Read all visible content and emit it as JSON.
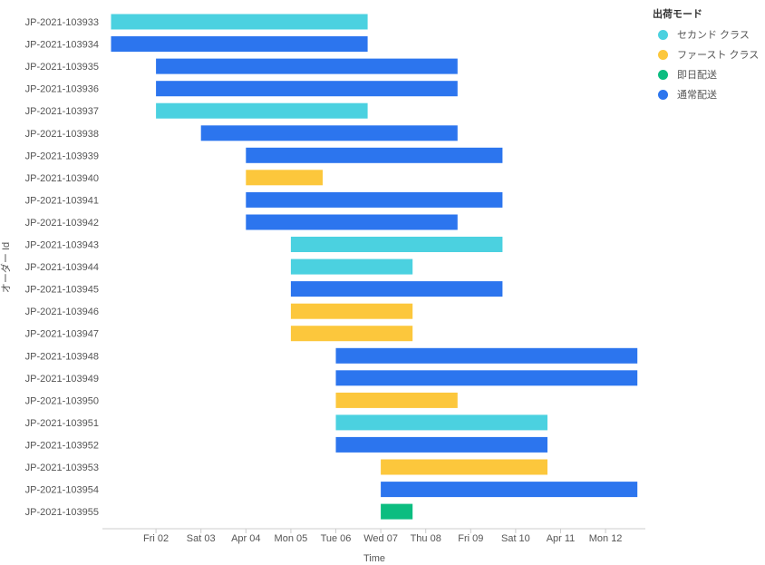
{
  "chart_data": {
    "type": "gantt",
    "xlabel": "Time",
    "ylabel": "オーダー Id",
    "x_ticks": [
      {
        "label": "Fri 02",
        "value": "2021-04-02"
      },
      {
        "label": "Sat 03",
        "value": "2021-04-03"
      },
      {
        "label": "Apr 04",
        "value": "2021-04-04"
      },
      {
        "label": "Mon 05",
        "value": "2021-04-05"
      },
      {
        "label": "Tue 06",
        "value": "2021-04-06"
      },
      {
        "label": "Wed 07",
        "value": "2021-04-07"
      },
      {
        "label": "Thu 08",
        "value": "2021-04-08"
      },
      {
        "label": "Fri 09",
        "value": "2021-04-09"
      },
      {
        "label": "Sat 10",
        "value": "2021-04-10"
      },
      {
        "label": "Apr 11",
        "value": "2021-04-11"
      },
      {
        "label": "Mon 12",
        "value": "2021-04-12"
      }
    ],
    "xlim": [
      "2021-04-01",
      "2021-04-13"
    ],
    "legend": {
      "title": "出荷モード",
      "position": "top-right",
      "items": [
        {
          "name": "セカンド クラス",
          "color": "#4bd1e0"
        },
        {
          "name": "ファースト クラス",
          "color": "#fcc73c"
        },
        {
          "name": "即日配送",
          "color": "#0cbd80"
        },
        {
          "name": "通常配送",
          "color": "#2c75ee"
        }
      ]
    },
    "tasks": [
      {
        "id": "JP-2021-103933",
        "start": "2021-04-01",
        "end": "2021-04-06 17:00",
        "mode": "セカンド クラス"
      },
      {
        "id": "JP-2021-103934",
        "start": "2021-04-01",
        "end": "2021-04-06 17:00",
        "mode": "通常配送"
      },
      {
        "id": "JP-2021-103935",
        "start": "2021-04-02",
        "end": "2021-04-08 17:00",
        "mode": "通常配送"
      },
      {
        "id": "JP-2021-103936",
        "start": "2021-04-02",
        "end": "2021-04-08 17:00",
        "mode": "通常配送"
      },
      {
        "id": "JP-2021-103937",
        "start": "2021-04-02",
        "end": "2021-04-06 17:00",
        "mode": "セカンド クラス"
      },
      {
        "id": "JP-2021-103938",
        "start": "2021-04-03",
        "end": "2021-04-08 17:00",
        "mode": "通常配送"
      },
      {
        "id": "JP-2021-103939",
        "start": "2021-04-04",
        "end": "2021-04-09 17:00",
        "mode": "通常配送"
      },
      {
        "id": "JP-2021-103940",
        "start": "2021-04-04",
        "end": "2021-04-05 17:00",
        "mode": "ファースト クラス"
      },
      {
        "id": "JP-2021-103941",
        "start": "2021-04-04",
        "end": "2021-04-09 17:00",
        "mode": "通常配送"
      },
      {
        "id": "JP-2021-103942",
        "start": "2021-04-04",
        "end": "2021-04-08 17:00",
        "mode": "通常配送"
      },
      {
        "id": "JP-2021-103943",
        "start": "2021-04-05",
        "end": "2021-04-09 17:00",
        "mode": "セカンド クラス"
      },
      {
        "id": "JP-2021-103944",
        "start": "2021-04-05",
        "end": "2021-04-07 17:00",
        "mode": "セカンド クラス"
      },
      {
        "id": "JP-2021-103945",
        "start": "2021-04-05",
        "end": "2021-04-09 17:00",
        "mode": "通常配送"
      },
      {
        "id": "JP-2021-103946",
        "start": "2021-04-05",
        "end": "2021-04-07 17:00",
        "mode": "ファースト クラス"
      },
      {
        "id": "JP-2021-103947",
        "start": "2021-04-05",
        "end": "2021-04-07 17:00",
        "mode": "ファースト クラス"
      },
      {
        "id": "JP-2021-103948",
        "start": "2021-04-06",
        "end": "2021-04-12 17:00",
        "mode": "通常配送"
      },
      {
        "id": "JP-2021-103949",
        "start": "2021-04-06",
        "end": "2021-04-12 17:00",
        "mode": "通常配送"
      },
      {
        "id": "JP-2021-103950",
        "start": "2021-04-06",
        "end": "2021-04-08 17:00",
        "mode": "ファースト クラス"
      },
      {
        "id": "JP-2021-103951",
        "start": "2021-04-06",
        "end": "2021-04-10 17:00",
        "mode": "セカンド クラス"
      },
      {
        "id": "JP-2021-103952",
        "start": "2021-04-06",
        "end": "2021-04-10 17:00",
        "mode": "通常配送"
      },
      {
        "id": "JP-2021-103953",
        "start": "2021-04-07",
        "end": "2021-04-10 17:00",
        "mode": "ファースト クラス"
      },
      {
        "id": "JP-2021-103954",
        "start": "2021-04-07",
        "end": "2021-04-12 17:00",
        "mode": "通常配送"
      },
      {
        "id": "JP-2021-103955",
        "start": "2021-04-07",
        "end": "2021-04-07 17:00",
        "mode": "即日配送"
      }
    ]
  }
}
